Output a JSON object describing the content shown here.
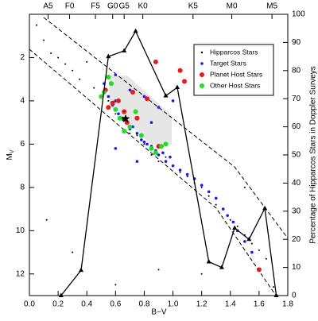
{
  "chart_data": {
    "type": "scatter",
    "x_label": "B−V",
    "y_label": "M",
    "y_label_sub": "V",
    "y2_label": "Percentage of Hipparcos Stars in Doppler Surveys",
    "xlim": [
      0,
      1.8
    ],
    "xticks": [
      {
        "value": 0,
        "label": "0.0"
      },
      0.2,
      0.4,
      0.6,
      0.8,
      {
        "value": 1,
        "label": "1.0"
      },
      1.2,
      1.4,
      1.6,
      1.8
    ],
    "ylim": [
      0,
      13
    ],
    "y_inverted": true,
    "yticks": [
      2,
      4,
      6,
      8,
      10,
      12
    ],
    "y2lim": [
      0,
      100
    ],
    "y2ticks": [
      0,
      10,
      20,
      30,
      40,
      50,
      60,
      70,
      80,
      90,
      100
    ],
    "top_ticks": [
      {
        "value": 0.13,
        "label": "A5"
      },
      {
        "value": 0.28,
        "label": "F0"
      },
      {
        "value": 0.46,
        "label": "F5"
      },
      {
        "value": 0.58,
        "label": "G0"
      },
      {
        "value": 0.66,
        "label": "G5"
      },
      {
        "value": 0.79,
        "label": "K0"
      },
      {
        "value": 1.14,
        "label": "K5"
      },
      {
        "value": 1.41,
        "label": "M0"
      },
      {
        "value": 1.69,
        "label": "M5"
      }
    ],
    "legend": "upper right",
    "series": [
      {
        "name": "Hipparcos Stars",
        "color": "#000000",
        "size": 1,
        "x": [
          0.05,
          0.1,
          0.15,
          0.2,
          0.25,
          0.3,
          0.35,
          0.4,
          0.45,
          0.5,
          0.55,
          0.6,
          0.65,
          0.7,
          0.75,
          0.8,
          0.85,
          0.9,
          0.95,
          1.0,
          1.05,
          1.1,
          1.15,
          1.2,
          1.25,
          1.3,
          1.35,
          1.4,
          1.45,
          1.5,
          1.55,
          1.6,
          1.65,
          0.12,
          0.3,
          0.6,
          0.9,
          1.2,
          1.5,
          1.7
        ],
        "values": [
          0.5,
          1.2,
          1.8,
          2.0,
          2.3,
          2.6,
          3.0,
          2.2,
          3.4,
          3.8,
          4.0,
          4.6,
          4.9,
          5.5,
          5.6,
          6.0,
          6.5,
          6.8,
          6.6,
          7.0,
          7.3,
          7.5,
          7.8,
          8.0,
          8.4,
          8.8,
          9.0,
          9.5,
          9.8,
          10.2,
          10.6,
          10.9,
          11.3,
          9.5,
          11.0,
          12.5,
          11.8,
          12.0,
          8.0,
          12.6
        ]
      },
      {
        "name": "Target Stars",
        "color": "#1a1ae6",
        "size": 1.8,
        "x": [
          0.52,
          0.55,
          0.58,
          0.6,
          0.62,
          0.65,
          0.68,
          0.7,
          0.72,
          0.75,
          0.78,
          0.8,
          0.82,
          0.85,
          0.88,
          0.9,
          0.93,
          0.95,
          0.98,
          1.0,
          1.05,
          1.1,
          1.15,
          1.2,
          1.25,
          1.3,
          1.35,
          1.38,
          1.42,
          1.45,
          1.5,
          1.55,
          0.6,
          0.7,
          0.8,
          0.9,
          0.6,
          0.75,
          0.85,
          1.0
        ],
        "values": [
          3.2,
          3.8,
          4.2,
          4.0,
          4.6,
          4.8,
          5.0,
          5.3,
          5.2,
          5.5,
          5.8,
          5.9,
          6.0,
          6.1,
          6.3,
          6.5,
          6.4,
          6.8,
          6.6,
          7.0,
          7.2,
          7.4,
          7.6,
          7.9,
          8.2,
          8.5,
          9.0,
          9.3,
          9.6,
          10.0,
          10.5,
          11.0,
          2.8,
          3.5,
          3.8,
          4.3,
          6.2,
          6.8,
          5.0,
          4.0
        ]
      },
      {
        "name": "Planet Host Stars",
        "color": "#e61a1a",
        "size": 3,
        "x": [
          0.88,
          1.05,
          1.08,
          0.53,
          0.58,
          0.62,
          0.66,
          0.75,
          0.55,
          0.82,
          0.9,
          0.68,
          1.6,
          0.72
        ],
        "values": [
          2.2,
          2.6,
          3.1,
          3.5,
          4.1,
          4.0,
          4.5,
          4.8,
          4.3,
          3.9,
          6.1,
          5.0,
          11.8,
          3.6
        ]
      },
      {
        "name": "Other Host Stars",
        "color": "#22dd22",
        "size": 3,
        "x": [
          0.5,
          0.55,
          0.6,
          0.63,
          0.7,
          0.78,
          0.85,
          0.88,
          0.92,
          0.57,
          0.74,
          0.66,
          0.95,
          0.52
        ],
        "values": [
          3.8,
          2.9,
          4.4,
          4.8,
          5.2,
          5.6,
          6.2,
          6.4,
          6.1,
          3.2,
          4.5,
          5.4,
          6.0,
          3.6
        ]
      }
    ],
    "line": {
      "axis": "y2",
      "color": "#000000",
      "x": [
        0.22,
        0.36,
        0.55,
        0.66,
        0.74,
        0.95,
        1.03,
        1.25,
        1.34,
        1.43,
        1.53,
        1.64,
        1.72
      ],
      "values": [
        0,
        9,
        85,
        87,
        94,
        71,
        74,
        12,
        10,
        24,
        20,
        31,
        0
      ]
    }
  }
}
